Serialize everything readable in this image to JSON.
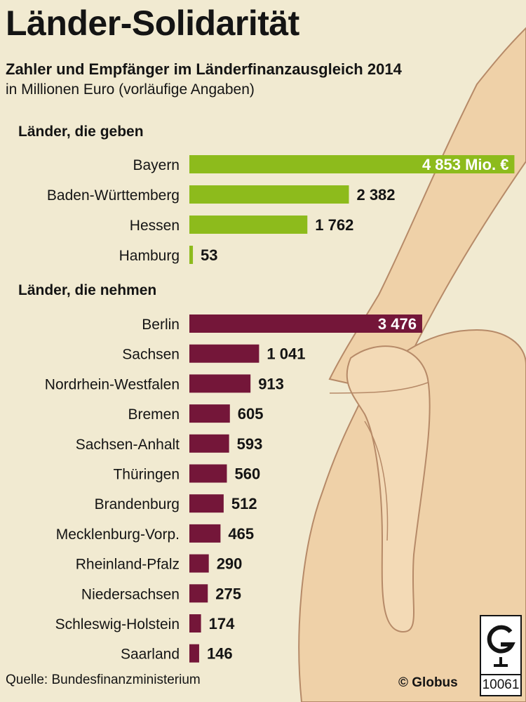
{
  "header": {
    "title": "Länder-Solidarität",
    "subtitle": "Zahler und Empfänger im Länderfinanzausgleich 2014",
    "note": "in Millionen Euro (vorläufige Angaben)"
  },
  "footer": {
    "source": "Quelle: Bundesfinanzministerium",
    "copyright": "© Globus",
    "logo_number": "10061"
  },
  "colors": {
    "givers": "#8dbb1c",
    "receivers": "#741639",
    "background": "#f1ead1",
    "hand_skin": "#efd1a8",
    "hand_outline": "#b68a68"
  },
  "chart_data": [
    {
      "type": "bar",
      "orientation": "horizontal",
      "section_label": "Länder, die geben",
      "categories": [
        "Bayern",
        "Baden-Württemberg",
        "Hessen",
        "Hamburg"
      ],
      "values": [
        4853,
        2382,
        1762,
        53
      ],
      "value_labels": [
        "4 853 Mio. €",
        "2 382",
        "1 762",
        "53"
      ]
    },
    {
      "type": "bar",
      "orientation": "horizontal",
      "section_label": "Länder, die nehmen",
      "categories": [
        "Berlin",
        "Sachsen",
        "Nordrhein-Westfalen",
        "Bremen",
        "Sachsen-Anhalt",
        "Thüringen",
        "Brandenburg",
        "Mecklenburg-Vorp.",
        "Rheinland-Pfalz",
        "Niedersachsen",
        "Schleswig-Holstein",
        "Saarland"
      ],
      "values": [
        3476,
        1041,
        913,
        605,
        593,
        560,
        512,
        465,
        290,
        275,
        174,
        146
      ],
      "value_labels": [
        "3 476",
        "1 041",
        "913",
        "605",
        "593",
        "560",
        "512",
        "465",
        "290",
        "275",
        "174",
        "146"
      ]
    }
  ]
}
